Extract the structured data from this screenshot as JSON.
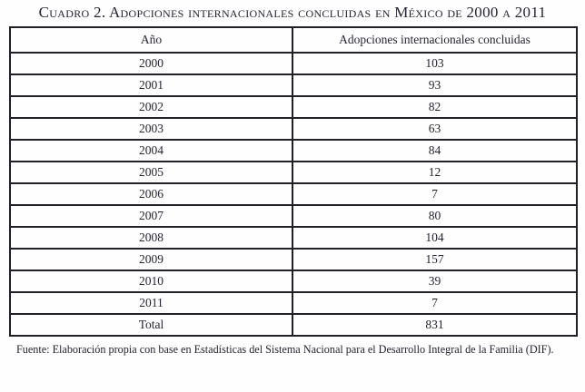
{
  "title": "Cuadro 2. Adopciones internacionales concluidas en México de 2000 a 2011",
  "table": {
    "columns": [
      "Año",
      "Adopciones internacionales concluidas"
    ],
    "rows": [
      [
        "2000",
        "103"
      ],
      [
        "2001",
        "93"
      ],
      [
        "2002",
        "82"
      ],
      [
        "2003",
        "63"
      ],
      [
        "2004",
        "84"
      ],
      [
        "2005",
        "12"
      ],
      [
        "2006",
        "7"
      ],
      [
        "2007",
        "80"
      ],
      [
        "2008",
        "104"
      ],
      [
        "2009",
        "157"
      ],
      [
        "2010",
        "39"
      ],
      [
        "2011",
        "7"
      ],
      [
        "Total",
        "831"
      ]
    ]
  },
  "footnote": "Fuente: Elaboración propia con base en Estadísticas del Sistema Nacional para el Desarrollo Integral de la Familia (DIF).",
  "colors": {
    "background": "#fefefe",
    "text": "#262430",
    "border": "#221f28"
  },
  "chart_data": {
    "type": "table",
    "title": "Cuadro 2. Adopciones internacionales concluidas en México de 2000 a 2011",
    "categories": [
      "2000",
      "2001",
      "2002",
      "2003",
      "2004",
      "2005",
      "2006",
      "2007",
      "2008",
      "2009",
      "2010",
      "2011"
    ],
    "values": [
      103,
      93,
      82,
      63,
      84,
      12,
      7,
      80,
      104,
      157,
      39,
      7
    ],
    "total": 831,
    "xlabel": "Año",
    "ylabel": "Adopciones internacionales concluidas"
  }
}
